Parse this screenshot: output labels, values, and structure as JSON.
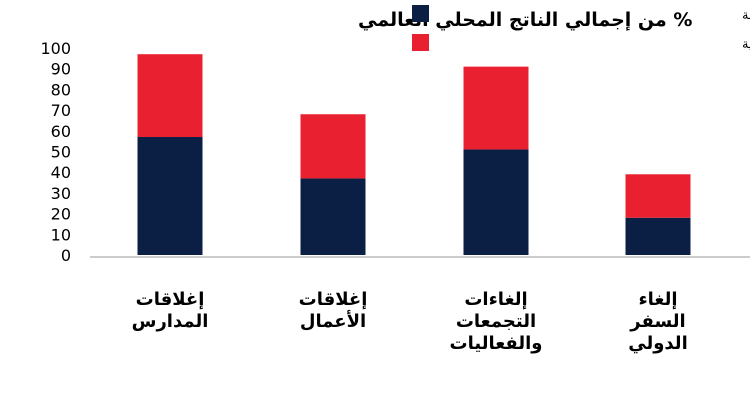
{
  "chart_data": {
    "type": "bar",
    "stacked": true,
    "title": "% من إجمالي الناتج المحلي العالمي",
    "categories": [
      [
        "إغلاقات",
        "المدارس"
      ],
      [
        "إغلاقات",
        "الأعمال"
      ],
      [
        "إلغاءات",
        "التجمعات",
        "والفعاليات"
      ],
      [
        "إلغاء",
        "السفر",
        "الدولي"
      ]
    ],
    "series": [
      {
        "name": "الاقتصادات المتقدمة",
        "color": "#0b1f45",
        "values": [
          57,
          37,
          51,
          18
        ]
      },
      {
        "name": "اقتصادات الأسواق الصاعدة والبلدان النامية",
        "color": "#e8202f",
        "values": [
          40,
          31,
          40,
          21
        ]
      }
    ],
    "ylim": [
      0,
      100
    ],
    "yticks": [
      0,
      10,
      20,
      30,
      40,
      50,
      60,
      70,
      80,
      90,
      100
    ],
    "legend_position": "top-right",
    "grid": false
  }
}
